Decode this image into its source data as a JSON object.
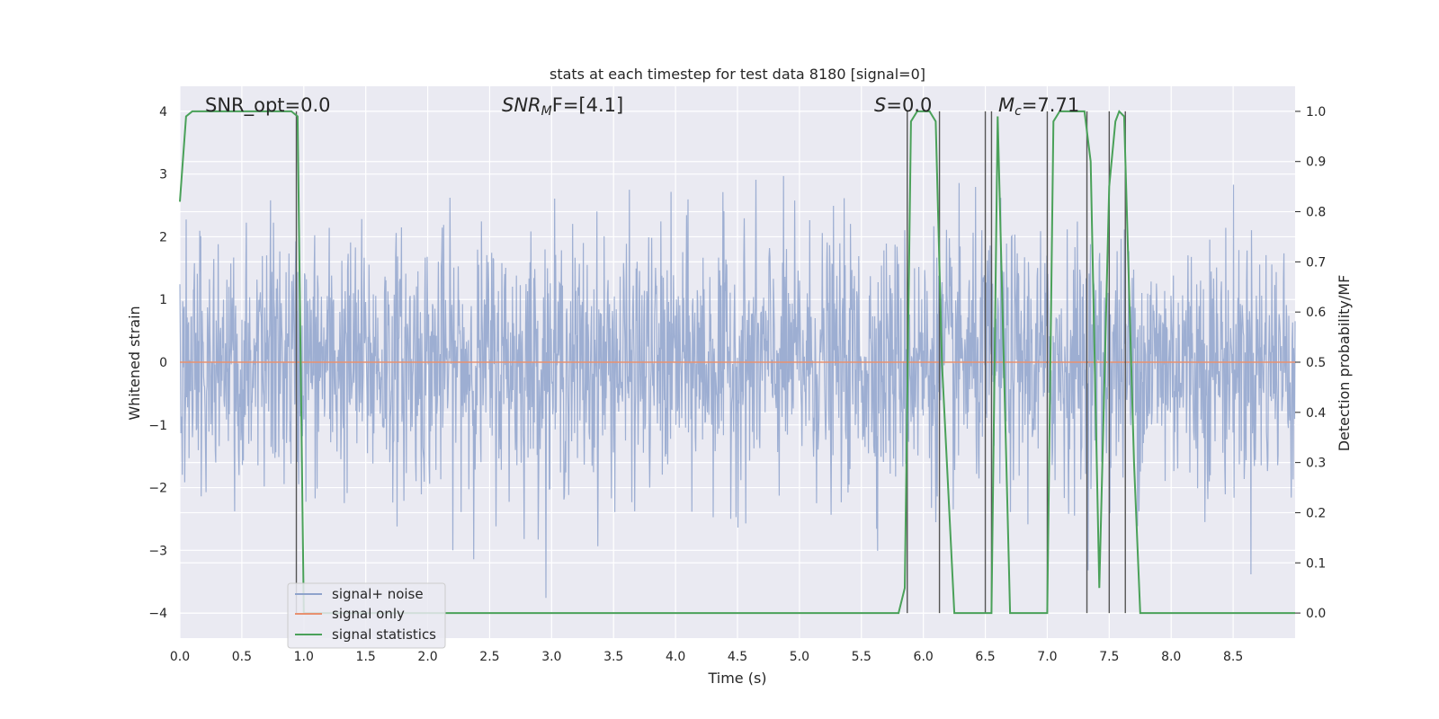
{
  "chart_data": {
    "type": "line",
    "title": "stats at each timestep for test data 8180 [signal=0]",
    "xlabel": "Time (s)",
    "ylabel": "Whitened strain",
    "ylabel_right": "Detection probability/MF",
    "xlim": [
      0.0,
      9.0
    ],
    "ylim": [
      -4.4,
      4.4
    ],
    "ylim_right": [
      -0.05,
      1.05
    ],
    "x_ticks": [
      "0.0",
      "0.5",
      "1.0",
      "1.5",
      "2.0",
      "2.5",
      "3.0",
      "3.5",
      "4.0",
      "4.5",
      "5.0",
      "5.5",
      "6.0",
      "6.5",
      "7.0",
      "7.5",
      "8.0",
      "8.5"
    ],
    "y_ticks_left": [
      "4",
      "3",
      "2",
      "1",
      "0",
      "−1",
      "−2",
      "−3",
      "−4"
    ],
    "y_ticks_right": [
      "1.0",
      "0.9",
      "0.8",
      "0.7",
      "0.6",
      "0.5",
      "0.4",
      "0.3",
      "0.2",
      "0.1",
      "0.0"
    ],
    "grid": true,
    "legend_position": "lower-left",
    "annotations": {
      "snr_opt": "SNR_opt=0.0",
      "snr_mf_main": "SNR",
      "snr_mf_sub": "M",
      "snr_mf_rest": "F=[4.1]",
      "s_main": "S",
      "s_rest": "=0.0",
      "mc_main": "M",
      "mc_sub": "c",
      "mc_rest": "=7.71"
    },
    "series": [
      {
        "name": "signal+ noise",
        "color": "#8fa3cc",
        "description_type": "noise",
        "axis": "left",
        "typical_range": [
          -2.5,
          2.5
        ],
        "max_abs_observed": 4.0
      },
      {
        "name": "signal only",
        "color": "#e8906f",
        "axis": "left",
        "x": [
          0.0,
          9.0
        ],
        "y": [
          0.0,
          0.0
        ]
      },
      {
        "name": "signal statistics",
        "color": "#4aa159",
        "axis": "right",
        "x": [
          0.0,
          0.05,
          0.1,
          0.2,
          0.3,
          0.4,
          0.5,
          0.6,
          0.7,
          0.8,
          0.9,
          0.95,
          1.0,
          1.5,
          2.0,
          2.5,
          3.0,
          3.5,
          4.0,
          4.5,
          5.0,
          5.4,
          5.5,
          5.8,
          5.85,
          5.9,
          5.95,
          6.0,
          6.05,
          6.1,
          6.15,
          6.25,
          6.3,
          6.45,
          6.55,
          6.6,
          6.7,
          6.9,
          7.0,
          7.05,
          7.1,
          7.2,
          7.3,
          7.35,
          7.42,
          7.5,
          7.55,
          7.58,
          7.62,
          7.7,
          7.75,
          8.0,
          8.5,
          9.0
        ],
        "y": [
          0.82,
          0.99,
          1.0,
          1.0,
          1.0,
          1.0,
          1.0,
          1.0,
          1.0,
          1.0,
          1.0,
          0.99,
          0.0,
          0.0,
          0.0,
          0.0,
          0.0,
          0.0,
          0.0,
          0.0,
          0.0,
          0.0,
          0.0,
          0.0,
          0.05,
          0.98,
          1.0,
          1.0,
          1.0,
          0.98,
          0.5,
          0.0,
          0.0,
          0.0,
          0.0,
          0.99,
          0.0,
          0.0,
          0.0,
          0.98,
          1.0,
          1.0,
          1.0,
          0.9,
          0.05,
          0.85,
          0.98,
          1.0,
          0.99,
          0.3,
          0.0,
          0.0,
          0.0,
          0.0
        ]
      }
    ],
    "vertical_lines": {
      "color": "#555555",
      "x": [
        0.94,
        5.87,
        6.13,
        6.5,
        6.55,
        7.0,
        7.32,
        7.5,
        7.63
      ]
    }
  }
}
